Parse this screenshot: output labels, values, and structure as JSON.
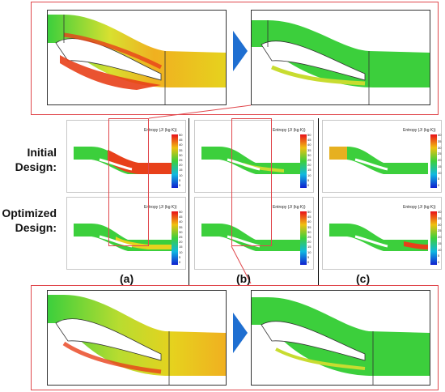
{
  "row_labels": {
    "initial_line1": "Initial",
    "initial_line2": "Design:",
    "optimized_line1": "Optimized",
    "optimized_line2": "Design:"
  },
  "column_labels": [
    "(a)",
    "(b)",
    "(c)"
  ],
  "colorbar": {
    "title": "Entropy (J/ (kg K))",
    "ticks_ab": [
      "50",
      "45",
      "40",
      "35",
      "30",
      "25",
      "20",
      "15",
      "10",
      "5",
      "0"
    ],
    "ticks_c": [
      "40",
      "35",
      "30",
      "25",
      "20",
      "15",
      "10",
      "5",
      "0"
    ]
  },
  "colors": {
    "frame_red": "#e0474c",
    "arrow_blue": "#1f6fd1",
    "flow_green": "#3ccf3c",
    "high_red": "#e8401a",
    "mid_yellow": "#e6d21e"
  }
}
